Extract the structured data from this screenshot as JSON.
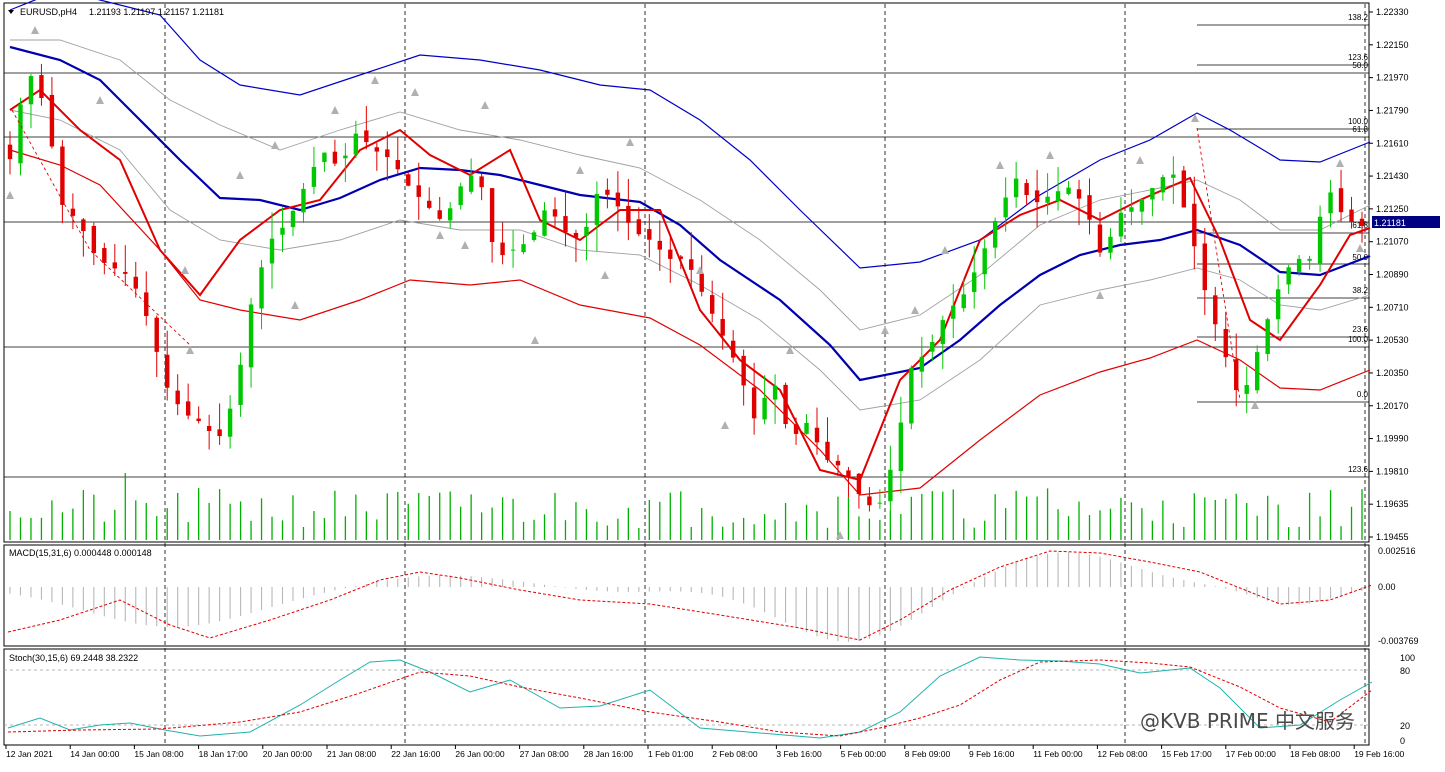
{
  "main_panel": {
    "symbol_label": "EURUSD,pH4",
    "ohlc_label": "1.21193 1.21197 1.21157 1.21181",
    "current_price_label": "1.21181",
    "price_axis_labels": [
      "1.22330",
      "1.22150",
      "1.21970",
      "1.21790",
      "1.21610",
      "1.21430",
      "1.21250",
      "1.21070",
      "1.20890",
      "1.20710",
      "1.20530",
      "1.20350",
      "1.20170",
      "1.19990",
      "1.19810",
      "1.19635",
      "1.19455"
    ]
  },
  "macd_panel": {
    "label": "MACD(15,31,6) 0.000448 0.000148",
    "axis_labels": [
      "0.002516",
      "0.00",
      "-0.003769"
    ]
  },
  "stoch_panel": {
    "label": "Stoch(30,15,6) 69.2448 38.2322",
    "axis_labels": [
      "100",
      "80",
      "20",
      "0"
    ]
  },
  "time_axis_labels": [
    "12 Jan 2021",
    "14 Jan 00:00",
    "15 Jan 08:00",
    "18 Jan 17:00",
    "20 Jan 00:00",
    "21 Jan 08:00",
    "22 Jan 16:00",
    "26 Jan 00:00",
    "27 Jan 08:00",
    "28 Jan 16:00",
    "1 Feb 01:00",
    "2 Feb 08:00",
    "3 Feb 16:00",
    "5 Feb 00:00",
    "8 Feb 09:00",
    "9 Feb 16:00",
    "11 Feb 00:00",
    "12 Feb 08:00",
    "15 Feb 17:00",
    "17 Feb 00:00",
    "18 Feb 08:00",
    "19 Feb 16:00"
  ],
  "fib_set_left": [
    "138.2",
    "123.6",
    "50.0",
    "100.0",
    "61.8",
    "61.8",
    "50.0",
    "38.2",
    "23.6",
    "100.0",
    "0.0",
    "123.6"
  ],
  "watermark": "@KVB PRIME 中文服务",
  "colors": {
    "bull": "#00c800",
    "bear": "#e00000",
    "ma_blue": "#0000b0",
    "ma_red": "#e00000",
    "band": "#a0a0a0",
    "volume": "#00b000",
    "signal": "#e00000",
    "stoch_main": "#20b2aa"
  },
  "chart_data": {
    "type": "candlestick",
    "symbol": "EURUSD",
    "timeframe": "H4",
    "ylim": [
      1.1945,
      1.224
    ],
    "fib_levels_prices": [
      1.22285,
      1.21985,
      1.2166,
      1.21005,
      1.2053,
      1.1981
    ],
    "close_series": [
      1.2155,
      1.2205,
      1.2185,
      1.213,
      1.212,
      1.21,
      1.2095,
      1.209,
      1.2065,
      1.203,
      1.2015,
      1.201,
      1.2,
      1.2025,
      1.208,
      1.211,
      1.212,
      1.214,
      1.216,
      1.215,
      1.217,
      1.216,
      1.2155,
      1.214,
      1.213,
      1.212,
      1.214,
      1.215,
      1.21,
      1.2105,
      1.211,
      1.213,
      1.2115,
      1.211,
      1.214,
      1.213,
      1.2115,
      1.211,
      1.21,
      1.21,
      1.208,
      1.206,
      1.204,
      1.201,
      1.2035,
      1.2,
      1.201,
      1.199,
      1.1985,
      1.197,
      1.196,
      1.199,
      1.204,
      1.205,
      1.207,
      1.208,
      1.21,
      1.2125,
      1.2145,
      1.213,
      1.2135,
      1.214,
      1.213,
      1.21,
      1.2125,
      1.213,
      1.214,
      1.215,
      1.212,
      1.208,
      1.205,
      1.202,
      1.205,
      1.208,
      1.21,
      1.21,
      1.214,
      1.2122,
      1.21181
    ],
    "volume_axis_visible": true,
    "macd": {
      "params": "15,31,6",
      "main": 0.000448,
      "signal": 0.000148
    },
    "stochastic": {
      "params": "30,15,6",
      "k": 69.2448,
      "d": 38.2322
    }
  }
}
